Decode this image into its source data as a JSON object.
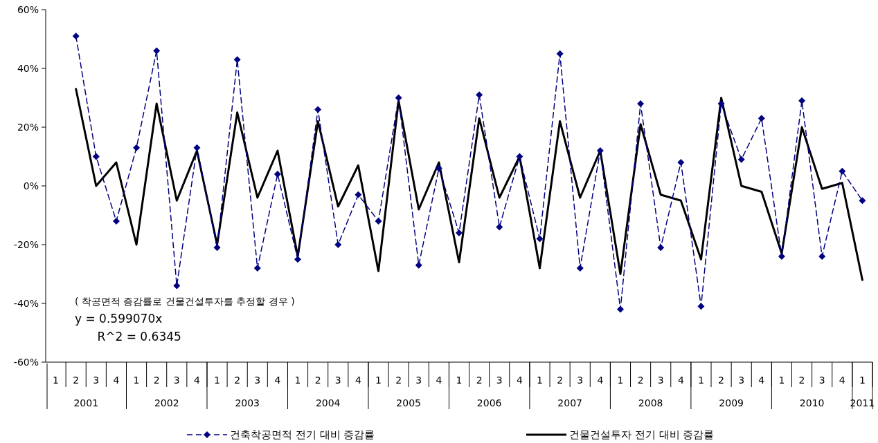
{
  "chart_data": {
    "type": "line",
    "categories": [
      "1",
      "2",
      "3",
      "4",
      "1",
      "2",
      "3",
      "4",
      "1",
      "2",
      "3",
      "4",
      "1",
      "2",
      "3",
      "4",
      "1",
      "2",
      "3",
      "4",
      "1",
      "2",
      "3",
      "4",
      "1",
      "2",
      "3",
      "4",
      "1",
      "2",
      "3",
      "4",
      "1",
      "2",
      "3",
      "4",
      "1",
      "2",
      "3",
      "4",
      "1"
    ],
    "series": [
      {
        "name": "건축착공면적 전기 대비 증감률",
        "color": "#000080",
        "marker": "diamond",
        "line_style": "dashed",
        "values": [
          null,
          51,
          10,
          -12,
          13,
          46,
          -34,
          13,
          -21,
          43,
          -28,
          4,
          -25,
          26,
          -20,
          -3,
          -12,
          30,
          -27,
          6,
          -16,
          31,
          -14,
          10,
          -18,
          45,
          -28,
          12,
          -42,
          28,
          -21,
          8,
          -41,
          28,
          9,
          23,
          -24,
          29,
          -24,
          5,
          -5
        ]
      },
      {
        "name": "건물건설투자 전기 대비 증감률",
        "color": "#000000",
        "marker": "none",
        "line_style": "solid",
        "values": [
          null,
          33,
          0,
          8,
          -20,
          28,
          -5,
          12,
          -20,
          25,
          -4,
          12,
          -24,
          22,
          -7,
          7,
          -29,
          29,
          -8,
          8,
          -26,
          23,
          -4,
          10,
          -28,
          22,
          -4,
          12,
          -30,
          21,
          -3,
          -5,
          -25,
          30,
          0,
          -2,
          -23,
          20,
          -1,
          1,
          -32
        ]
      }
    ],
    "ylim": [
      -60,
      60
    ],
    "yticks": [
      {
        "value": -60,
        "label": "-60%"
      },
      {
        "value": -40,
        "label": "-40%"
      },
      {
        "value": -20,
        "label": "-20%"
      },
      {
        "value": 0,
        "label": "0%"
      },
      {
        "value": 20,
        "label": "20%"
      },
      {
        "value": 40,
        "label": "40%"
      },
      {
        "value": 60,
        "label": "60%"
      }
    ],
    "annotations": [
      "2001",
      "2002",
      "2003",
      "2004",
      "2005",
      "2006",
      "2007",
      "2008",
      "2009",
      "2010",
      "2011",
      "( 착공면적 증감률로 건물건설투자를 추정할 경우 )\ny = 0.599070x\n      R^2 = 0.6345"
    ],
    "grid": false,
    "legend": "bottom"
  }
}
